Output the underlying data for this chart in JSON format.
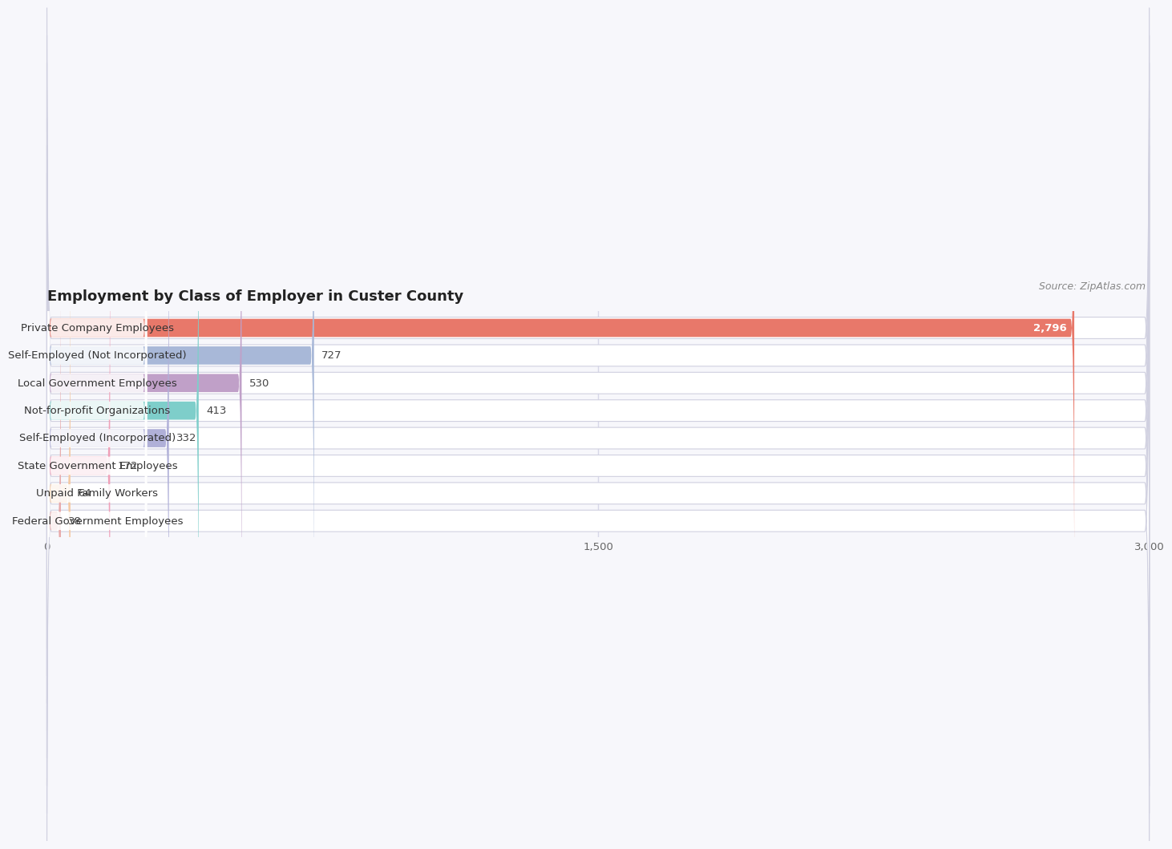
{
  "title": "Employment by Class of Employer in Custer County",
  "source": "Source: ZipAtlas.com",
  "categories": [
    "Private Company Employees",
    "Self-Employed (Not Incorporated)",
    "Local Government Employees",
    "Not-for-profit Organizations",
    "Self-Employed (Incorporated)",
    "State Government Employees",
    "Unpaid Family Workers",
    "Federal Government Employees"
  ],
  "values": [
    2796,
    727,
    530,
    413,
    332,
    172,
    64,
    38
  ],
  "bar_colors": [
    "#e8786a",
    "#a8b8d8",
    "#c0a0c8",
    "#7ececa",
    "#b0b0d8",
    "#f0a0b8",
    "#f5c8a0",
    "#e8a8a8"
  ],
  "xlim_max": 3000,
  "xticks": [
    0,
    1500,
    3000
  ],
  "xtick_labels": [
    "0",
    "1,500",
    "3,000"
  ],
  "bg_color": "#f7f7fb",
  "bar_bg_color": "#ffffff",
  "grid_color": "#d8d8e8",
  "title_fontsize": 13,
  "label_fontsize": 9.5,
  "value_fontsize": 9.5,
  "source_fontsize": 9
}
